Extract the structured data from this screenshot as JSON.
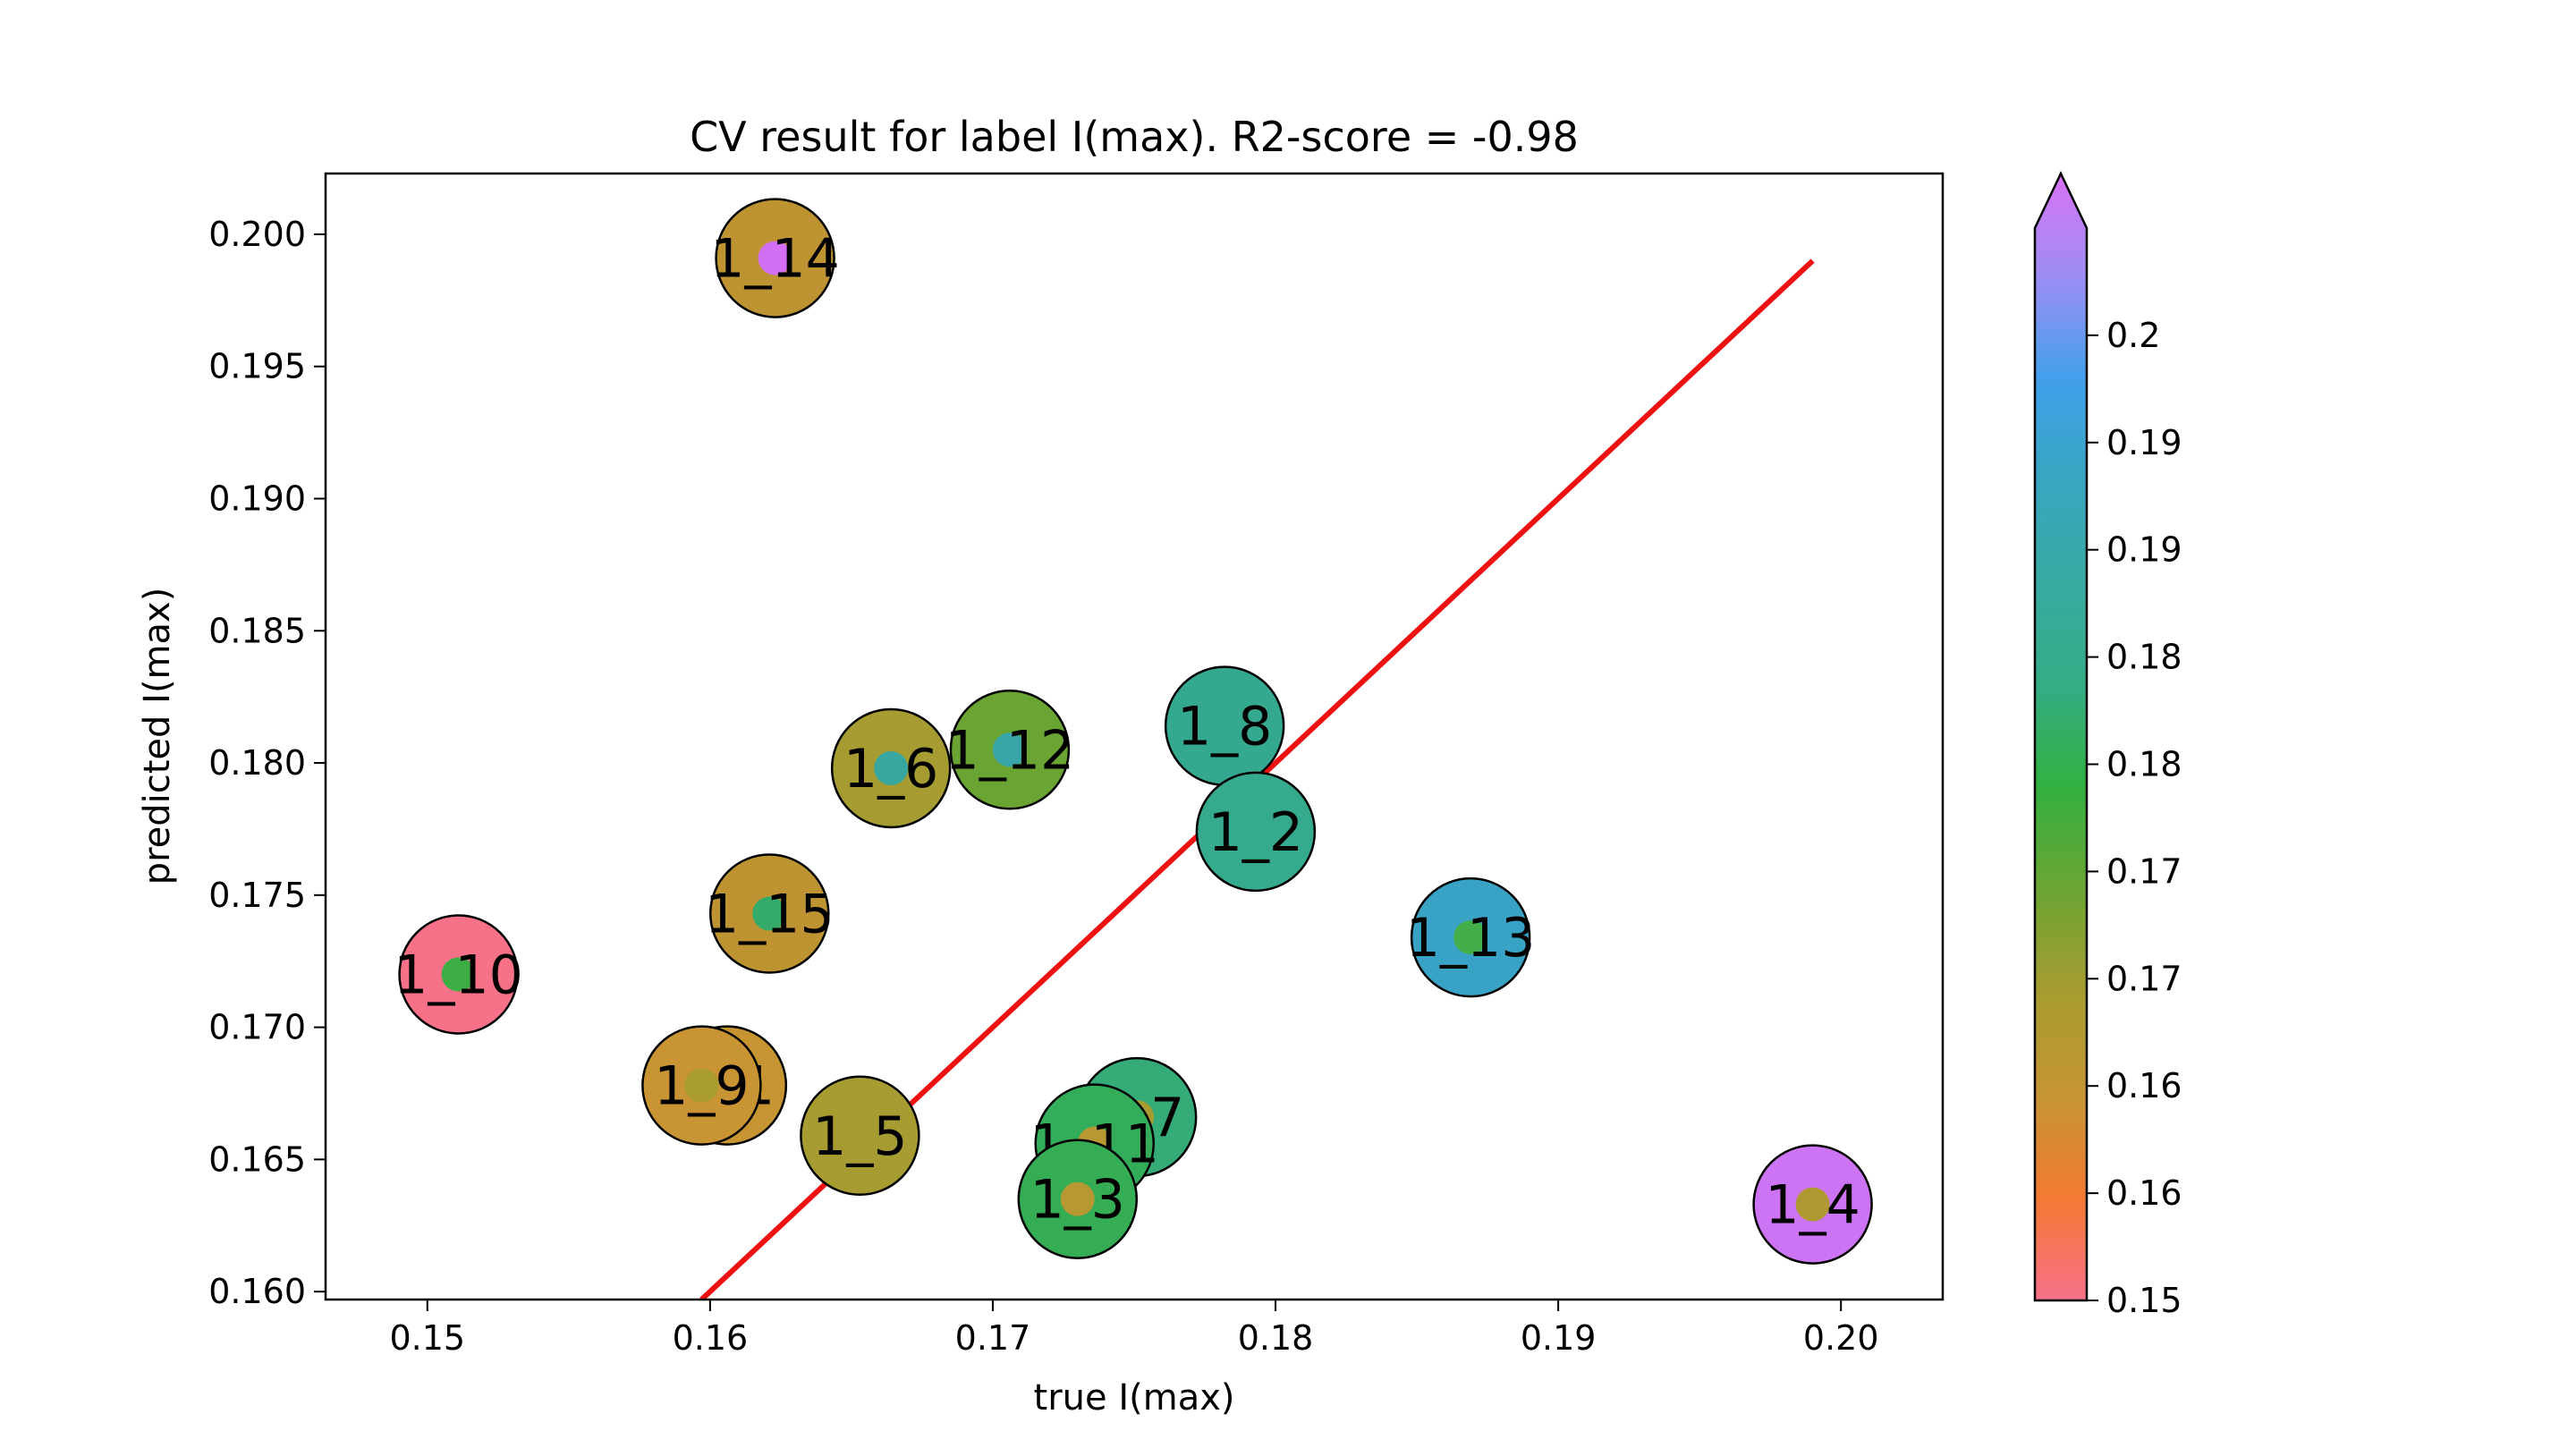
{
  "chart_data": {
    "type": "scatter",
    "title": "CV result for label I(max). R2-score = -0.98",
    "xlabel": "true I(max)",
    "ylabel": "predicted I(max)",
    "xlim": [
      0.1464,
      0.2036
    ],
    "ylim": [
      0.1597,
      0.2023
    ],
    "xticks": [
      {
        "value": 0.15,
        "label": "0.15"
      },
      {
        "value": 0.16,
        "label": "0.16"
      },
      {
        "value": 0.17,
        "label": "0.17"
      },
      {
        "value": 0.18,
        "label": "0.18"
      },
      {
        "value": 0.19,
        "label": "0.19"
      },
      {
        "value": 0.2,
        "label": "0.20"
      }
    ],
    "yticks": [
      {
        "value": 0.16,
        "label": "0.160"
      },
      {
        "value": 0.165,
        "label": "0.165"
      },
      {
        "value": 0.17,
        "label": "0.170"
      },
      {
        "value": 0.175,
        "label": "0.175"
      },
      {
        "value": 0.18,
        "label": "0.180"
      },
      {
        "value": 0.185,
        "label": "0.185"
      },
      {
        "value": 0.19,
        "label": "0.190"
      },
      {
        "value": 0.195,
        "label": "0.195"
      },
      {
        "value": 0.2,
        "label": "0.200"
      }
    ],
    "grid": false,
    "identity_line": {
      "x": [
        0.1597,
        0.199
      ],
      "y": [
        0.1597,
        0.199
      ],
      "color": "#ee1111"
    },
    "colorbar": {
      "range": [
        0.15,
        0.2
      ],
      "extend": "max",
      "stops": [
        "#f77189",
        "#f37932",
        "#c69532",
        "#a79c31",
        "#6ca533",
        "#33b040",
        "#35ac85",
        "#36aaa1",
        "#38a6c0",
        "#42a0ec",
        "#9e8ef4",
        "#d872f4"
      ],
      "ticks": [
        {
          "value": 0.15,
          "label": "0.15"
        },
        {
          "value": 0.155,
          "label": "0.16"
        },
        {
          "value": 0.16,
          "label": "0.16"
        },
        {
          "value": 0.165,
          "label": "0.17"
        },
        {
          "value": 0.17,
          "label": "0.17"
        },
        {
          "value": 0.175,
          "label": "0.18"
        },
        {
          "value": 0.18,
          "label": "0.18"
        },
        {
          "value": 0.185,
          "label": "0.19"
        },
        {
          "value": 0.19,
          "label": "0.19"
        },
        {
          "value": 0.195,
          "label": "0.2"
        }
      ]
    },
    "points": [
      {
        "label": "1_14",
        "x": 0.1623,
        "y": 0.1991,
        "true_color": "#be9432",
        "pred_color": "#d36ff4"
      },
      {
        "label": "1_12",
        "x": 0.1706,
        "y": 0.1805,
        "true_color": "#6aa534",
        "pred_color": "#38a6a8"
      },
      {
        "label": "1_8",
        "x": 0.1782,
        "y": 0.1814,
        "true_color": "#35a890",
        "pred_color": "#35a890"
      },
      {
        "label": "1_6",
        "x": 0.1664,
        "y": 0.1798,
        "true_color": "#a69c31",
        "pred_color": "#37a79f"
      },
      {
        "label": "1_2",
        "x": 0.1793,
        "y": 0.1774,
        "true_color": "#35aa8c",
        "pred_color": "#35aa8c"
      },
      {
        "label": "1_15",
        "x": 0.1621,
        "y": 0.1743,
        "true_color": "#be9432",
        "pred_color": "#35ab6a"
      },
      {
        "label": "1_13",
        "x": 0.1869,
        "y": 0.1734,
        "true_color": "#38a3c4",
        "pred_color": "#44ae4a"
      },
      {
        "label": "1_10",
        "x": 0.1511,
        "y": 0.172,
        "true_color": "#f77189",
        "pred_color": "#3cae44"
      },
      {
        "label": "1_1",
        "x": 0.1606,
        "y": 0.1678,
        "true_color": "#c69532",
        "pred_color": "#a99c31"
      },
      {
        "label": "1_9",
        "x": 0.1597,
        "y": 0.1678,
        "true_color": "#c99433",
        "pred_color": "#a99c31"
      },
      {
        "label": "1_7",
        "x": 0.1751,
        "y": 0.1666,
        "true_color": "#35ac78",
        "pred_color": "#a79c31"
      },
      {
        "label": "1_5",
        "x": 0.1653,
        "y": 0.1659,
        "true_color": "#a69c31",
        "pred_color": "#a69c31"
      },
      {
        "label": "1_11",
        "x": 0.1736,
        "y": 0.1656,
        "true_color": "#33ad5a",
        "pred_color": "#b89833"
      },
      {
        "label": "1_3",
        "x": 0.173,
        "y": 0.1635,
        "true_color": "#35ad55",
        "pred_color": "#b89833"
      },
      {
        "label": "1_4",
        "x": 0.199,
        "y": 0.1633,
        "true_color": "#cc74f4",
        "pred_color": "#b09833"
      }
    ]
  }
}
